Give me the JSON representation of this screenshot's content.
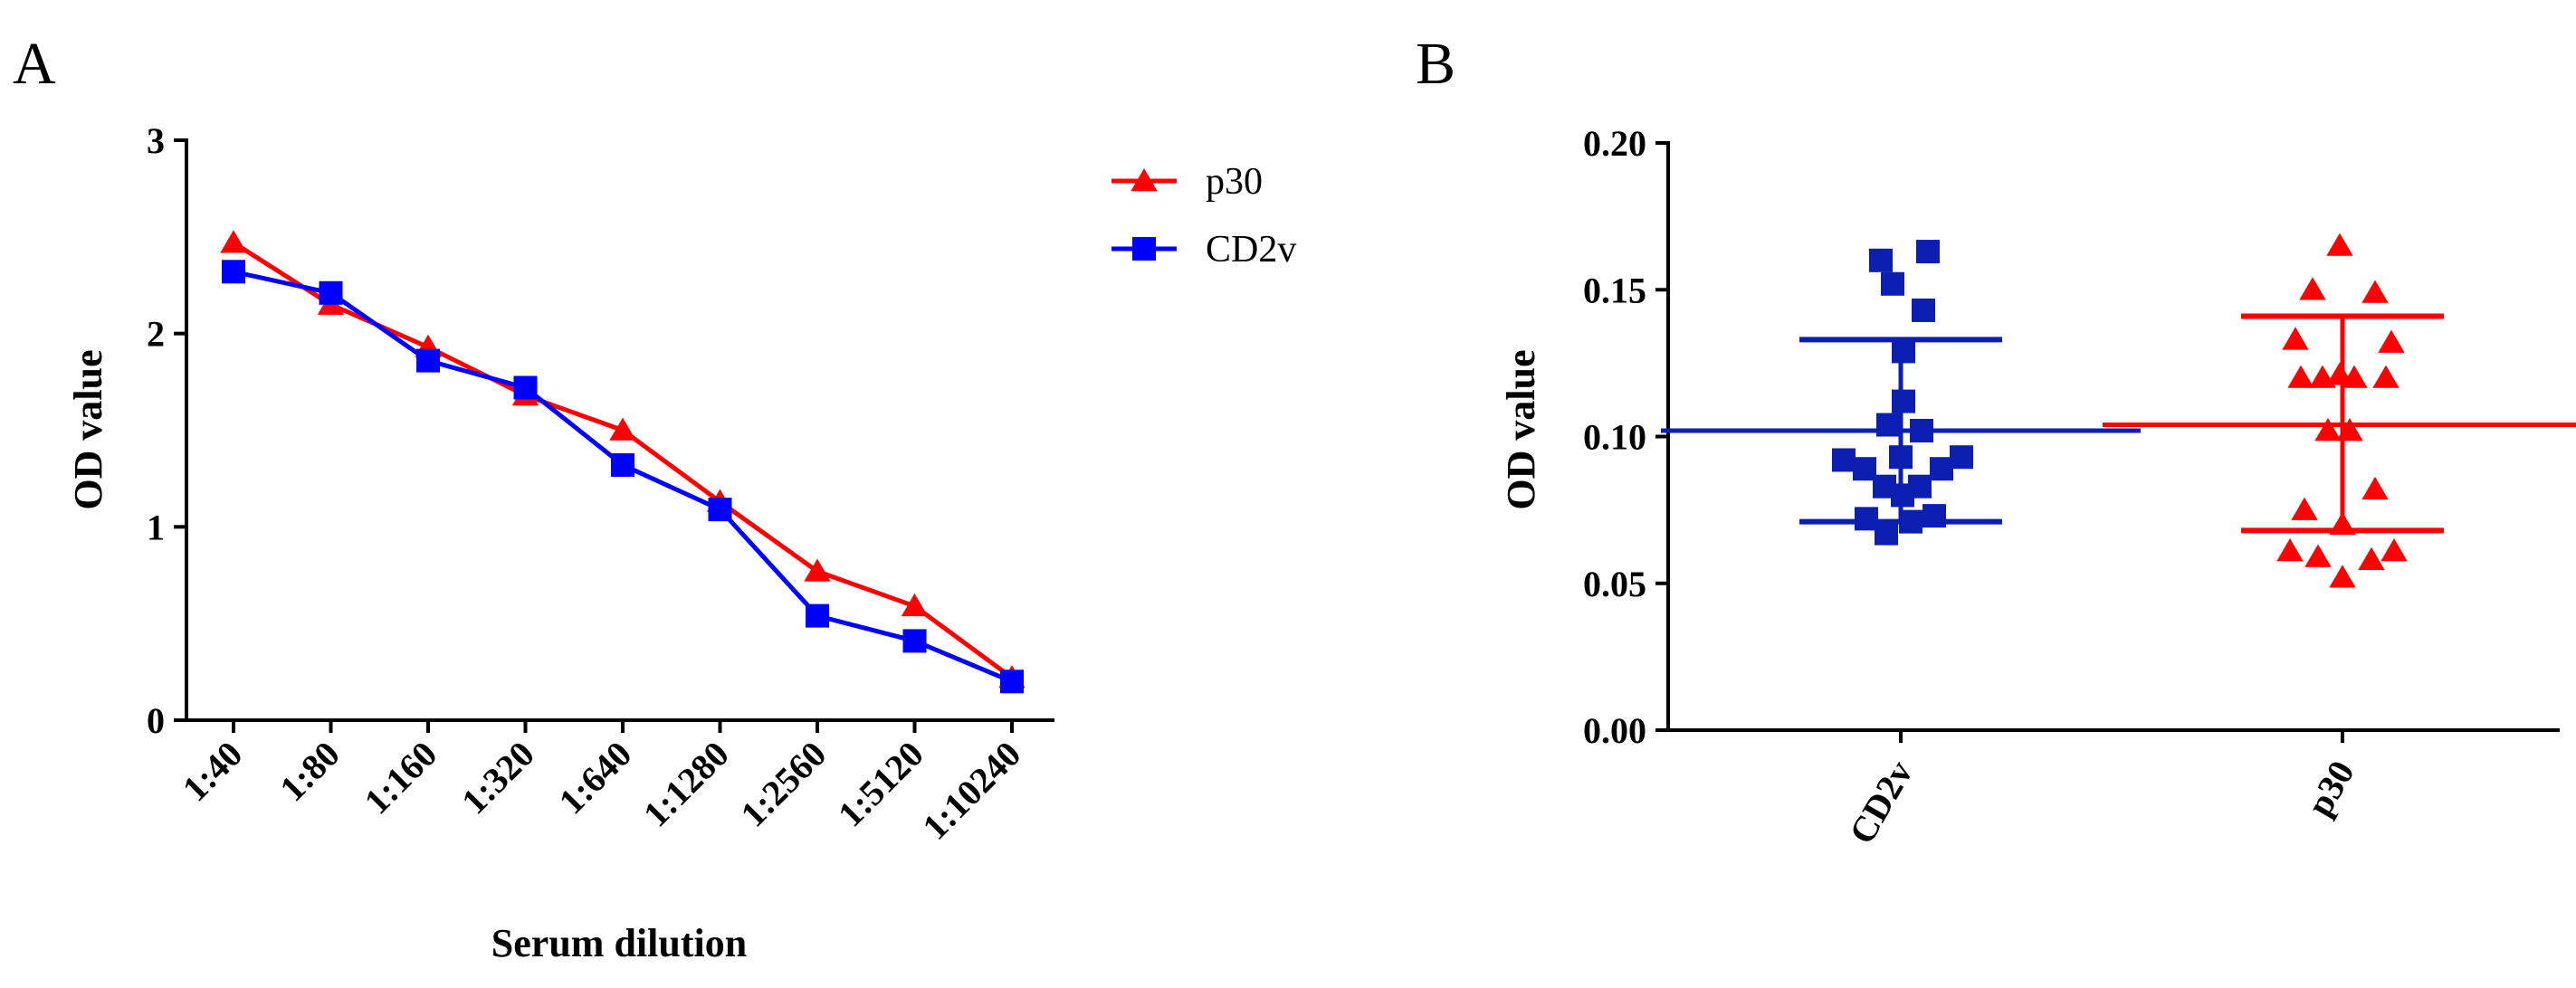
{
  "chart_data": [
    {
      "panel": "A",
      "type": "line",
      "xlabel": "Serum dilution",
      "ylabel": "OD value",
      "categories": [
        "1:40",
        "1:80",
        "1:160",
        "1:320",
        "1:640",
        "1:1280",
        "1:2560",
        "1:5120",
        "1:10240"
      ],
      "ylim": [
        0,
        3
      ],
      "yticks": [
        "0",
        "1",
        "2",
        "3"
      ],
      "legend_position": "top-right",
      "series": [
        {
          "name": "p30",
          "color": "#ff0000",
          "marker": "triangle",
          "values": [
            2.47,
            2.15,
            1.93,
            1.68,
            1.5,
            1.13,
            0.77,
            0.59,
            0.22
          ]
        },
        {
          "name": "CD2v",
          "color": "#0000ff",
          "marker": "square",
          "values": [
            2.32,
            2.21,
            1.86,
            1.72,
            1.32,
            1.09,
            0.54,
            0.41,
            0.2
          ]
        }
      ]
    },
    {
      "panel": "B",
      "type": "scatter",
      "ylabel": "OD value",
      "categories": [
        "CD2v",
        "p30"
      ],
      "ylim": [
        0,
        0.2
      ],
      "yticks": [
        "0.00",
        "0.05",
        "0.10",
        "0.15",
        "0.20"
      ],
      "groups": [
        {
          "name": "CD2v",
          "color": "#0d1fb0",
          "marker": "square",
          "mean": 0.102,
          "sd_upper": 0.133,
          "sd_lower": 0.071,
          "points": [
            {
              "dx": -0.22,
              "y": 0.16
            },
            {
              "dx": 0.3,
              "y": 0.163
            },
            {
              "dx": -0.09,
              "y": 0.152
            },
            {
              "dx": 0.25,
              "y": 0.143
            },
            {
              "dx": 0.03,
              "y": 0.129
            },
            {
              "dx": 0.03,
              "y": 0.112
            },
            {
              "dx": -0.14,
              "y": 0.104
            },
            {
              "dx": 0.23,
              "y": 0.102
            },
            {
              "dx": 0.0,
              "y": 0.093
            },
            {
              "dx": -0.63,
              "y": 0.092
            },
            {
              "dx": 0.67,
              "y": 0.093
            },
            {
              "dx": -0.4,
              "y": 0.089
            },
            {
              "dx": 0.45,
              "y": 0.089
            },
            {
              "dx": -0.18,
              "y": 0.083
            },
            {
              "dx": 0.21,
              "y": 0.083
            },
            {
              "dx": 0.02,
              "y": 0.08
            },
            {
              "dx": -0.38,
              "y": 0.072
            },
            {
              "dx": 0.11,
              "y": 0.071
            },
            {
              "dx": 0.37,
              "y": 0.073
            },
            {
              "dx": -0.16,
              "y": 0.067
            }
          ]
        },
        {
          "name": "p30",
          "color": "#ff0000",
          "marker": "triangle",
          "mean": 0.104,
          "sd_upper": 0.141,
          "sd_lower": 0.068,
          "points": [
            {
              "dx": -0.03,
              "y": 0.165
            },
            {
              "dx": -0.33,
              "y": 0.15
            },
            {
              "dx": 0.36,
              "y": 0.149
            },
            {
              "dx": -0.52,
              "y": 0.133
            },
            {
              "dx": 0.54,
              "y": 0.132
            },
            {
              "dx": -0.22,
              "y": 0.12
            },
            {
              "dx": 0.13,
              "y": 0.12
            },
            {
              "dx": -0.03,
              "y": 0.121
            },
            {
              "dx": -0.46,
              "y": 0.12
            },
            {
              "dx": 0.48,
              "y": 0.12
            },
            {
              "dx": -0.16,
              "y": 0.102
            },
            {
              "dx": 0.08,
              "y": 0.102
            },
            {
              "dx": 0.36,
              "y": 0.082
            },
            {
              "dx": -0.42,
              "y": 0.075
            },
            {
              "dx": 0.0,
              "y": 0.07
            },
            {
              "dx": -0.58,
              "y": 0.061
            },
            {
              "dx": 0.57,
              "y": 0.061
            },
            {
              "dx": -0.27,
              "y": 0.059
            },
            {
              "dx": 0.32,
              "y": 0.058
            },
            {
              "dx": 0.0,
              "y": 0.052
            }
          ]
        }
      ]
    }
  ]
}
